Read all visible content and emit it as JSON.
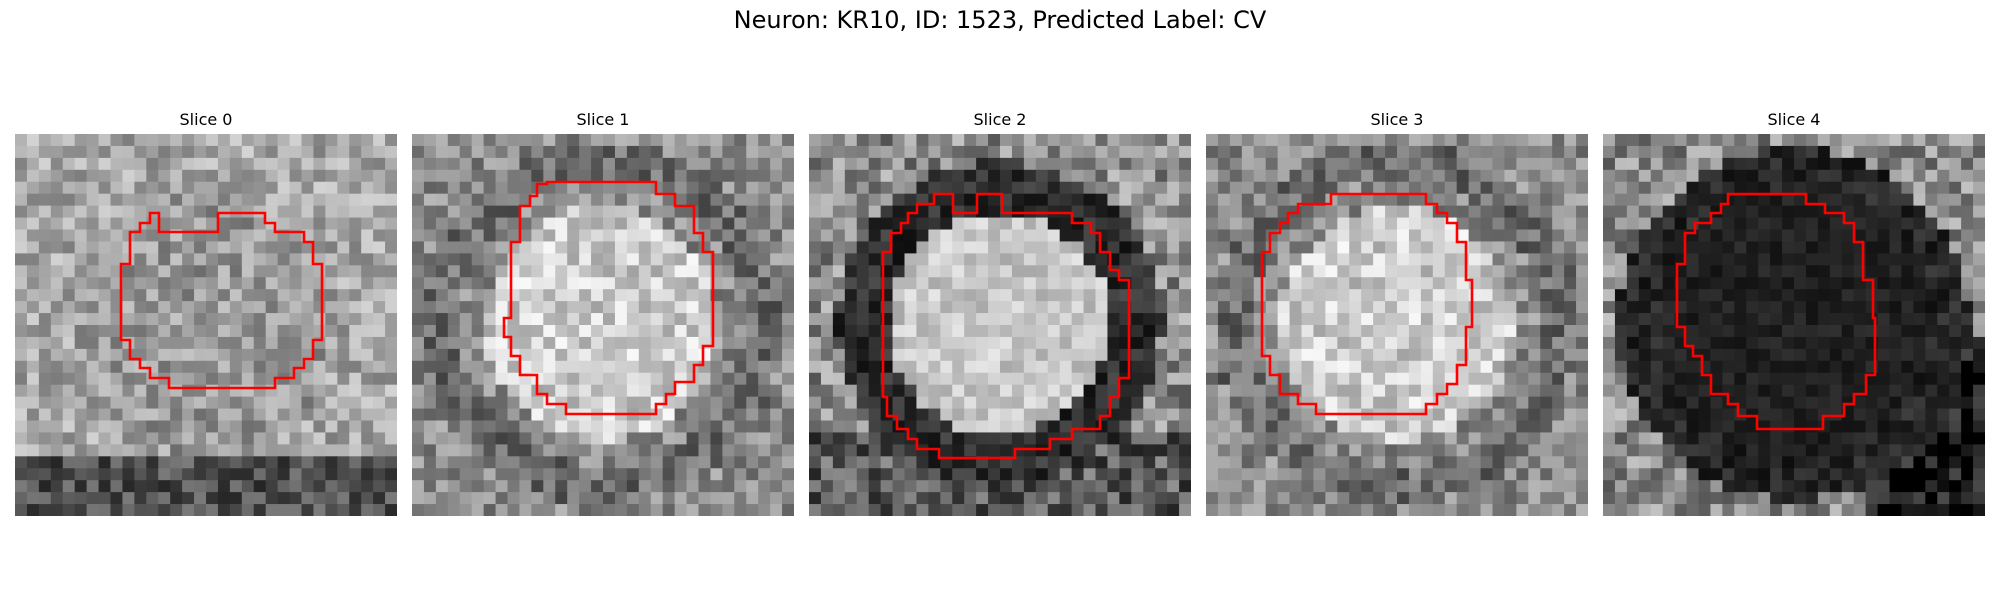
{
  "figure": {
    "title": "Neuron: KR10, ID: 1523, Predicted Label: CV"
  },
  "colors": {
    "contour": "#ff0000",
    "background": "#ffffff"
  },
  "panels": [
    {
      "title": "Slice 0",
      "tone": "mid"
    },
    {
      "title": "Slice 1",
      "tone": "bright"
    },
    {
      "title": "Slice 2",
      "tone": "bright-ring"
    },
    {
      "title": "Slice 3",
      "tone": "bright"
    },
    {
      "title": "Slice 4",
      "tone": "dark"
    }
  ]
}
